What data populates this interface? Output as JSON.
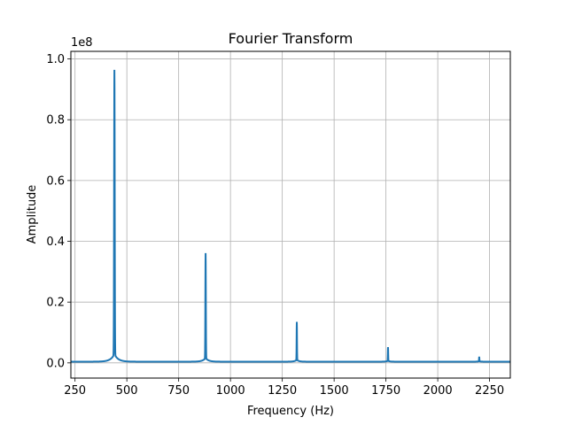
{
  "chart_data": {
    "type": "line",
    "title": "Fourier Transform",
    "xlabel": "Frequency (Hz)",
    "ylabel": "Amplitude",
    "y_offset_label": "1e8",
    "xlim": [
      230,
      2350
    ],
    "ylim": [
      -5000000,
      102500000
    ],
    "grid": true,
    "color": "#1f77b4",
    "x_ticks": [
      250,
      500,
      750,
      1000,
      1250,
      1500,
      1750,
      2000,
      2250
    ],
    "x_tick_labels": [
      "250",
      "500",
      "750",
      "1000",
      "1250",
      "1500",
      "1750",
      "2000",
      "2250"
    ],
    "y_ticks": [
      0,
      20000000,
      40000000,
      60000000,
      80000000,
      100000000
    ],
    "y_tick_labels": [
      "0.0",
      "0.2",
      "0.4",
      "0.6",
      "0.8",
      "1.0"
    ],
    "series": [
      {
        "baseline": 400000,
        "peaks": [
          {
            "x": 440,
            "y": 93500000,
            "width": 5,
            "skirt": 2500000,
            "skirt_width": 18
          },
          {
            "x": 880,
            "y": 34500000,
            "width": 4,
            "skirt": 1200000,
            "skirt_width": 14
          },
          {
            "x": 1320,
            "y": 12500000,
            "width": 3,
            "skirt": 600000,
            "skirt_width": 10
          },
          {
            "x": 1760,
            "y": 4500000,
            "width": 3,
            "skirt": 300000,
            "skirt_width": 8
          },
          {
            "x": 2200,
            "y": 1500000,
            "width": 2.5,
            "skirt": 150000,
            "skirt_width": 6
          }
        ]
      }
    ]
  }
}
